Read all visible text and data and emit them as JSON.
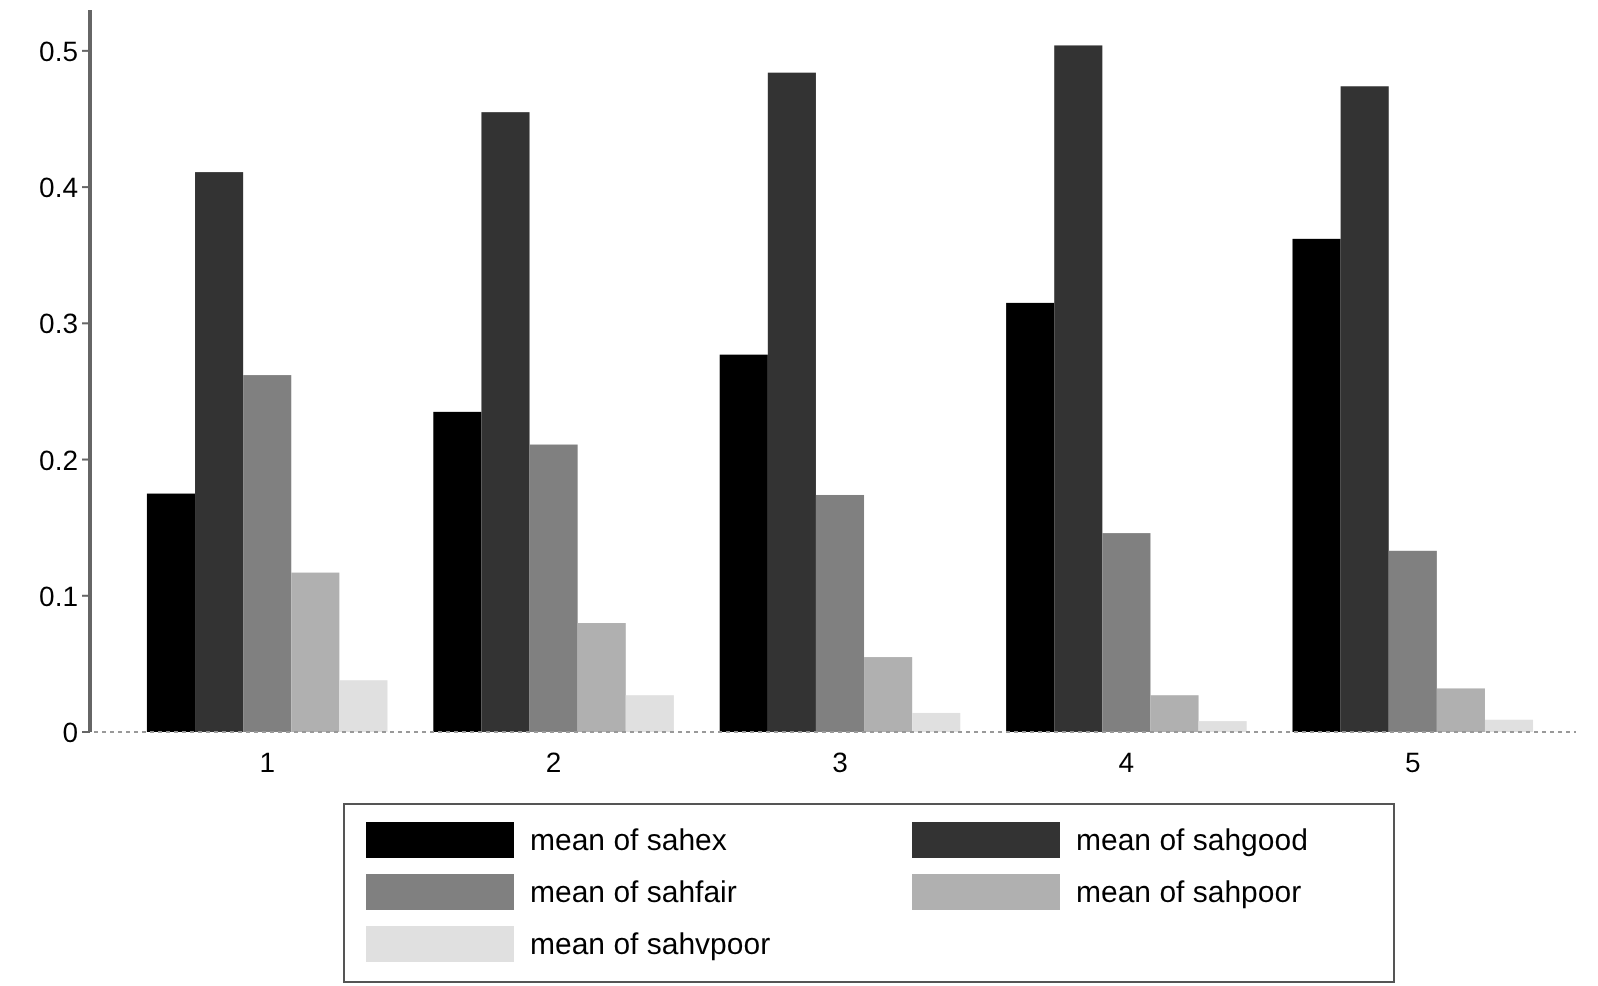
{
  "chart_data": {
    "type": "bar",
    "categories": [
      "1",
      "2",
      "3",
      "4",
      "5"
    ],
    "series": [
      {
        "name": "mean of sahex",
        "color": "#000000",
        "values": [
          0.175,
          0.235,
          0.277,
          0.315,
          0.362
        ]
      },
      {
        "name": "mean of sahgood",
        "color": "#333333",
        "values": [
          0.411,
          0.455,
          0.484,
          0.504,
          0.474
        ]
      },
      {
        "name": "mean of sahfair",
        "color": "#808080",
        "values": [
          0.262,
          0.211,
          0.174,
          0.146,
          0.133
        ]
      },
      {
        "name": "mean of sahpoor",
        "color": "#b0b0b0",
        "values": [
          0.117,
          0.08,
          0.055,
          0.027,
          0.032
        ]
      },
      {
        "name": "mean of sahvpoor",
        "color": "#e0e0e0",
        "values": [
          0.038,
          0.027,
          0.014,
          0.008,
          0.009
        ]
      }
    ],
    "ylim": [
      0,
      0.53
    ],
    "yticks": [
      0,
      0.1,
      0.2,
      0.3,
      0.4,
      0.5
    ],
    "grid": false,
    "legend": "bottom"
  }
}
